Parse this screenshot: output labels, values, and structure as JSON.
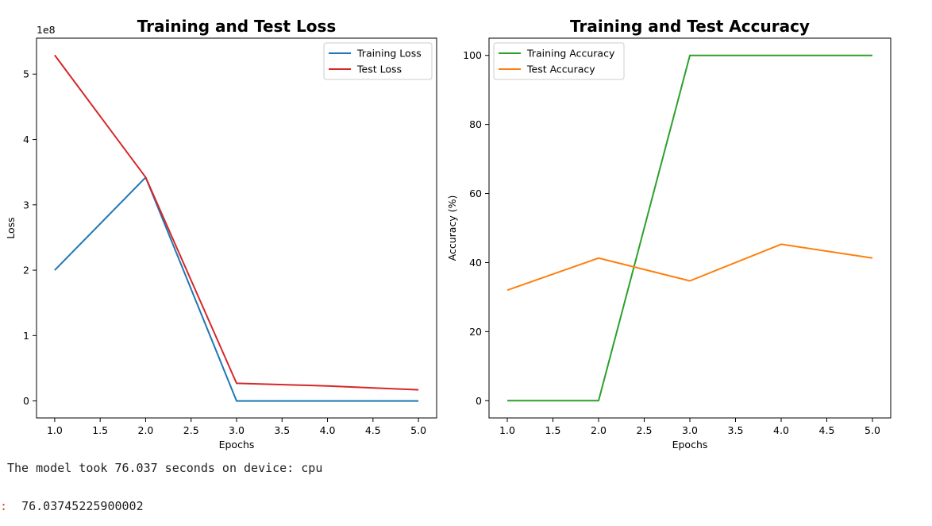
{
  "output": {
    "stdout": "The model took 76.037 seconds on device: cpu",
    "result_prompt": ":",
    "result_value": "76.03745225900002"
  },
  "chart_data": [
    {
      "type": "line",
      "title": "Training and Test Loss",
      "xlabel": "Epochs",
      "ylabel": "Loss",
      "y_offset_label": "1e8",
      "x": [
        1,
        2,
        3,
        4,
        5
      ],
      "x_ticks": [
        1.0,
        1.5,
        2.0,
        2.5,
        3.0,
        3.5,
        4.0,
        4.5,
        5.0
      ],
      "x_tick_labels": [
        "1.0",
        "1.5",
        "2.0",
        "2.5",
        "3.0",
        "3.5",
        "4.0",
        "4.5",
        "5.0"
      ],
      "y_ticks": [
        0,
        1,
        2,
        3,
        4,
        5
      ],
      "y_tick_labels": [
        "0",
        "1",
        "2",
        "3",
        "4",
        "5"
      ],
      "xlim": [
        0.8,
        5.2
      ],
      "ylim": [
        -0.26,
        5.55
      ],
      "grid": false,
      "legend_position": "upper right",
      "series": [
        {
          "name": "Training Loss",
          "color": "#1f77b4",
          "values": [
            2.0,
            3.42,
            0.0,
            0.0,
            0.0
          ]
        },
        {
          "name": "Test Loss",
          "color": "#d62728",
          "values": [
            5.29,
            3.42,
            0.27,
            0.23,
            0.17
          ]
        }
      ]
    },
    {
      "type": "line",
      "title": "Training and Test Accuracy",
      "xlabel": "Epochs",
      "ylabel": "Accuracy (%)",
      "y_offset_label": "",
      "x": [
        1,
        2,
        3,
        4,
        5
      ],
      "x_ticks": [
        1.0,
        1.5,
        2.0,
        2.5,
        3.0,
        3.5,
        4.0,
        4.5,
        5.0
      ],
      "x_tick_labels": [
        "1.0",
        "1.5",
        "2.0",
        "2.5",
        "3.0",
        "3.5",
        "4.0",
        "4.5",
        "5.0"
      ],
      "y_ticks": [
        0,
        20,
        40,
        60,
        80,
        100
      ],
      "y_tick_labels": [
        "0",
        "20",
        "40",
        "60",
        "80",
        "100"
      ],
      "xlim": [
        0.8,
        5.2
      ],
      "ylim": [
        -5,
        105
      ],
      "grid": false,
      "legend_position": "upper left",
      "series": [
        {
          "name": "Training Accuracy",
          "color": "#2ca02c",
          "values": [
            0,
            0,
            100,
            100,
            100
          ]
        },
        {
          "name": "Test Accuracy",
          "color": "#ff7f0e",
          "values": [
            32,
            41.3,
            34.7,
            45.3,
            41.3
          ]
        }
      ]
    }
  ]
}
